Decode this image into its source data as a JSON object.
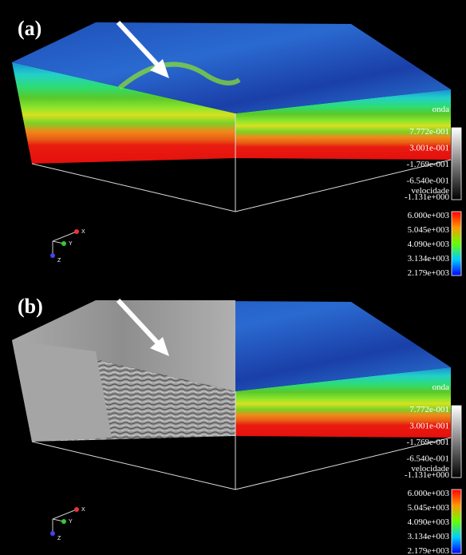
{
  "panels": [
    {
      "label": "(a)",
      "mode": "velocity",
      "legends": [
        {
          "title": "onda",
          "ticks": [
            "7.772e-001",
            "3.001e-001",
            "-1.769e-001",
            "-6.540e-001",
            "-1.131e+000"
          ]
        },
        {
          "title": "velocidade",
          "ticks": [
            "6.000e+003",
            "5.045e+003",
            "4.090e+003",
            "3.134e+003",
            "2.179e+003"
          ]
        }
      ],
      "axes": [
        "X",
        "Y",
        "Z"
      ]
    },
    {
      "label": "(b)",
      "mode": "wave",
      "legends": [
        {
          "title": "onda",
          "ticks": [
            "7.772e-001",
            "3.001e-001",
            "-1.769e-001",
            "-6.540e-001",
            "-1.131e+000"
          ]
        },
        {
          "title": "velocidade",
          "ticks": [
            "6.000e+003",
            "5.045e+003",
            "4.090e+003",
            "3.134e+003",
            "2.179e+003"
          ]
        }
      ],
      "axes": [
        "X",
        "Y",
        "Z"
      ]
    }
  ]
}
